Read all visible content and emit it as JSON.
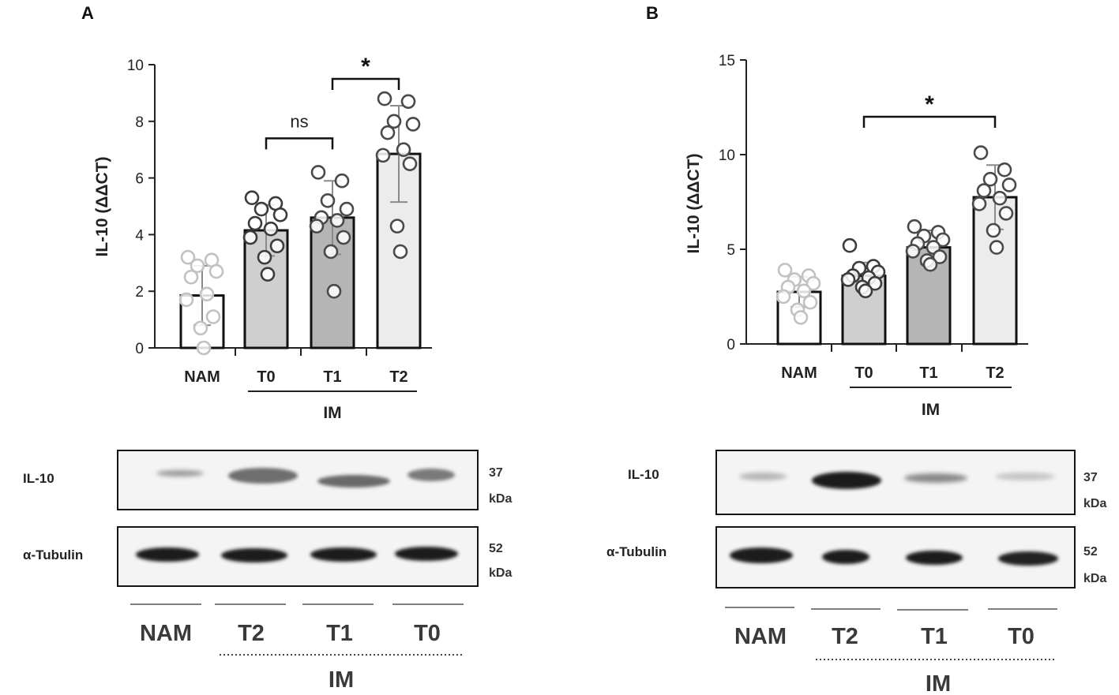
{
  "panels": [
    {
      "letter": "A",
      "chart_data": {
        "type": "bar",
        "ylabel": "IL-10 (ΔΔCT)",
        "ylim": [
          0,
          10
        ],
        "yticks": [
          "0",
          "2",
          "4",
          "6",
          "8",
          "10"
        ],
        "categories": [
          "NAM",
          "T0",
          "T1",
          "T2"
        ],
        "group_label": "IM",
        "group_members": [
          "T0",
          "T1",
          "T2"
        ],
        "means": [
          1.85,
          4.15,
          4.6,
          6.85
        ],
        "sd": [
          1.05,
          0.9,
          1.3,
          1.7
        ],
        "points": [
          [
            3.2,
            3.1,
            2.9,
            2.7,
            2.5,
            1.9,
            1.7,
            1.1,
            0.7,
            0.0
          ],
          [
            5.3,
            5.1,
            4.9,
            4.7,
            4.4,
            4.2,
            3.9,
            3.6,
            3.2,
            2.6
          ],
          [
            6.2,
            5.9,
            5.2,
            4.9,
            4.6,
            4.5,
            4.3,
            3.9,
            3.4,
            2.0
          ],
          [
            8.8,
            8.7,
            8.0,
            7.9,
            7.6,
            7.0,
            6.8,
            6.5,
            4.3,
            3.4
          ]
        ],
        "bar_colors": [
          "#ffffff",
          "#cfcfcf",
          "#b5b5b5",
          "#ececec"
        ],
        "point_colors": [
          "#c2c2c2",
          "#3c3c3c",
          "#4a4a4a",
          "#4a4a4a"
        ],
        "comparisons": [
          {
            "from": "T0",
            "to": "T1",
            "label": "ns",
            "y": 7.4
          },
          {
            "from": "T1",
            "to": "T2",
            "label": "*",
            "y": 9.5
          }
        ]
      },
      "blot": {
        "rows": [
          {
            "label": "IL-10",
            "kda_value": "37",
            "kda_unit": "kDa"
          },
          {
            "label": "α-Tubulin",
            "kda_value": "52",
            "kda_unit": "kDa"
          }
        ],
        "lanes": [
          "NAM",
          "T2",
          "T1",
          "T0"
        ],
        "group_label": "IM"
      }
    },
    {
      "letter": "B",
      "chart_data": {
        "type": "bar",
        "ylabel": "IL-10 (ΔΔCT)",
        "ylim": [
          0,
          15
        ],
        "yticks": [
          "0",
          "5",
          "10",
          "15"
        ],
        "categories": [
          "NAM",
          "T0",
          "T1",
          "T2"
        ],
        "group_label": "IM",
        "group_members": [
          "T0",
          "T1",
          "T2"
        ],
        "means": [
          2.75,
          3.6,
          5.1,
          7.75
        ],
        "sd": [
          0.8,
          0.7,
          0.9,
          1.7
        ],
        "points": [
          [
            3.9,
            3.6,
            3.4,
            3.2,
            3.0,
            2.8,
            2.5,
            2.2,
            1.8,
            1.4
          ],
          [
            5.2,
            4.1,
            4.0,
            3.8,
            3.6,
            3.5,
            3.4,
            3.2,
            3.0,
            2.8
          ],
          [
            6.2,
            5.9,
            5.7,
            5.5,
            5.3,
            5.1,
            4.9,
            4.6,
            4.4,
            4.2
          ],
          [
            10.1,
            9.2,
            8.7,
            8.4,
            8.1,
            7.7,
            7.4,
            6.9,
            6.0,
            5.1
          ]
        ],
        "bar_colors": [
          "#ffffff",
          "#cfcfcf",
          "#b5b5b5",
          "#ececec"
        ],
        "point_colors": [
          "#c2c2c2",
          "#3c3c3c",
          "#4a4a4a",
          "#4a4a4a"
        ],
        "comparisons": [
          {
            "from": "T0",
            "to": "T2",
            "label": "*",
            "y": 12.0
          }
        ]
      },
      "blot": {
        "rows": [
          {
            "label": "IL-10",
            "kda_value": "37",
            "kda_unit": "kDa"
          },
          {
            "label": "α-Tubulin",
            "kda_value": "52",
            "kda_unit": "kDa"
          }
        ],
        "lanes": [
          "NAM",
          "T2",
          "T1",
          "T0"
        ],
        "group_label": "IM"
      }
    }
  ]
}
